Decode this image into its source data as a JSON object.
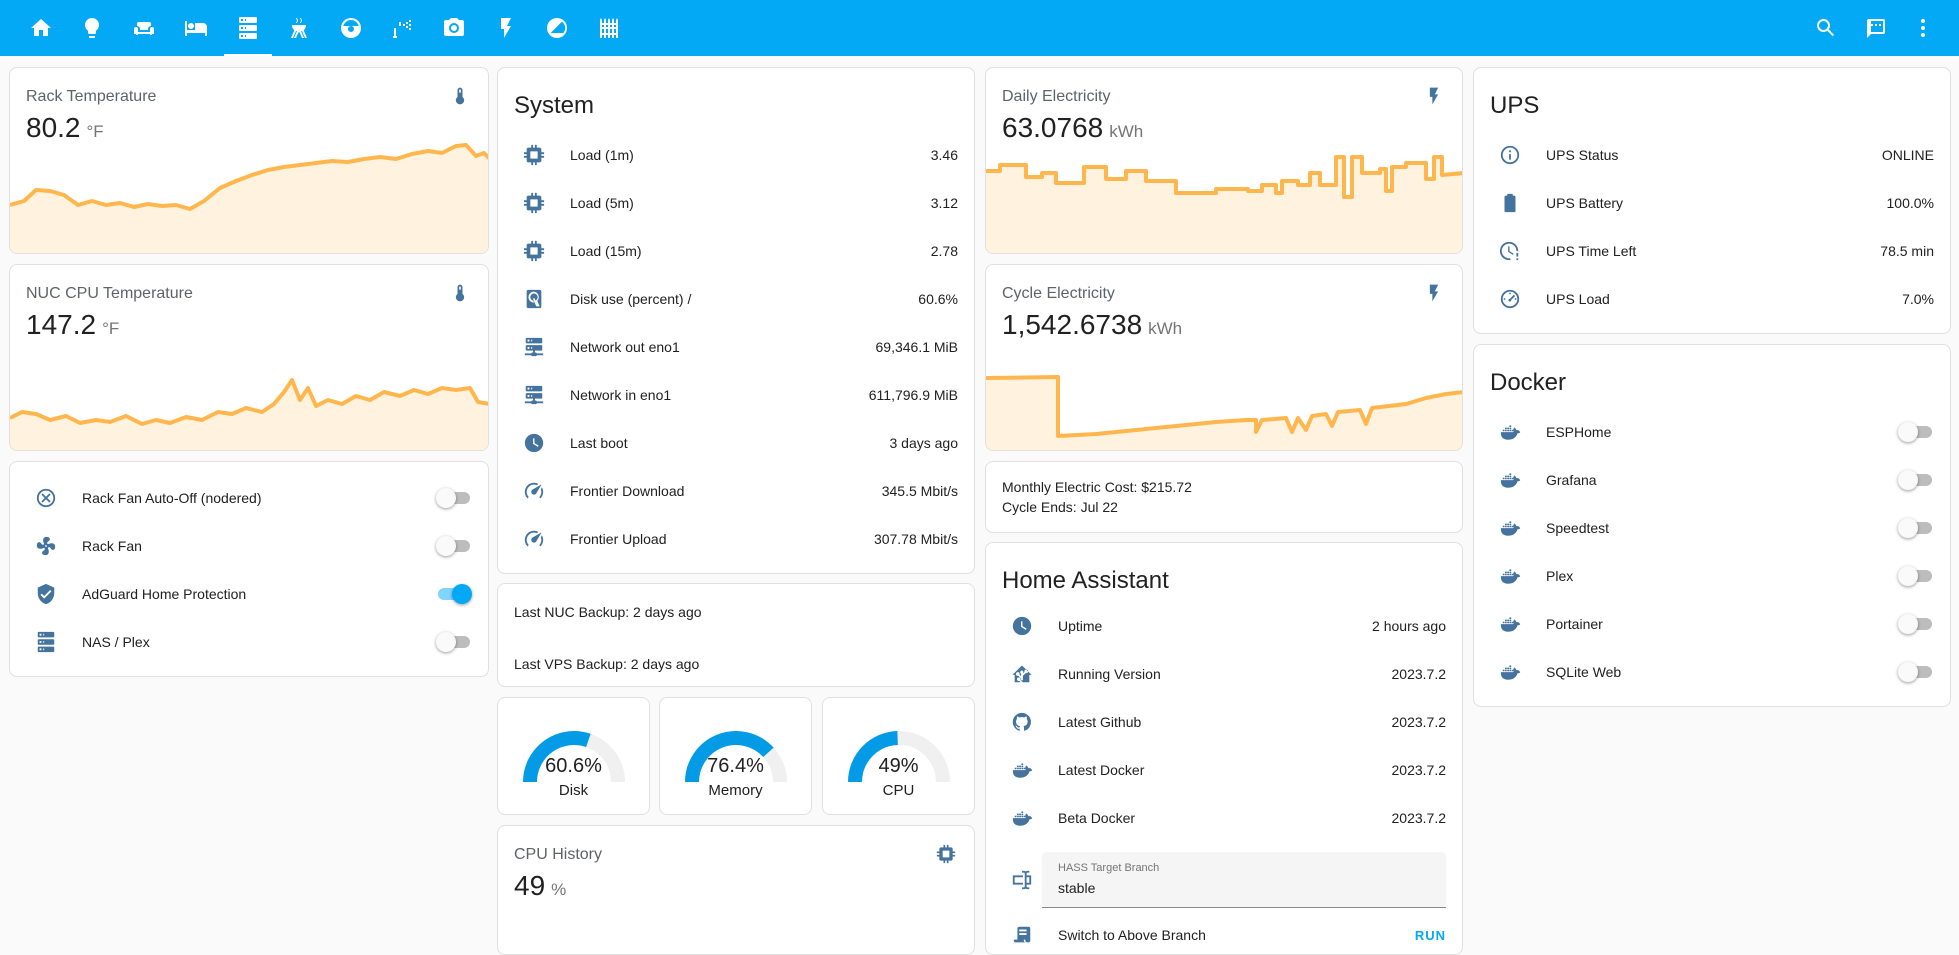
{
  "colors": {
    "accent": "#03a9f4",
    "icon": "#44739e",
    "graph": "#ffb74d"
  },
  "topbar": {
    "tabs": [
      {
        "icon": "home-icon",
        "active": false
      },
      {
        "icon": "brain-icon",
        "active": false
      },
      {
        "icon": "sofa-icon",
        "active": false
      },
      {
        "icon": "bed-icon",
        "active": false
      },
      {
        "icon": "server-icon",
        "active": true
      },
      {
        "icon": "grill-icon",
        "active": false
      },
      {
        "icon": "robot-vacuum-icon",
        "active": false
      },
      {
        "icon": "sprinkler-icon",
        "active": false
      },
      {
        "icon": "camera-icon",
        "active": false
      },
      {
        "icon": "flash-icon",
        "active": false
      },
      {
        "icon": "weather-icon",
        "active": false
      },
      {
        "icon": "fence-icon",
        "active": false
      }
    ],
    "actions": [
      "search-icon",
      "assist-icon",
      "menu-icon"
    ]
  },
  "rack_temp": {
    "name": "Rack Temperature",
    "value": "80.2",
    "unit": "°F",
    "icon": "thermometer-icon"
  },
  "nuc_temp": {
    "name": "NUC CPU Temperature",
    "value": "147.2",
    "unit": "°F",
    "icon": "thermometer-icon"
  },
  "switches": [
    {
      "label": "Rack Fan Auto-Off (nodered)",
      "icon": "close-circle-icon",
      "on": false
    },
    {
      "label": "Rack Fan",
      "icon": "fan-icon",
      "on": false
    },
    {
      "label": "AdGuard Home Protection",
      "icon": "shield-check-icon",
      "on": true
    },
    {
      "label": "NAS / Plex",
      "icon": "server-icon",
      "on": false
    }
  ],
  "system": {
    "title": "System",
    "rows": [
      {
        "label": "Load (1m)",
        "value": "3.46",
        "icon": "cpu-icon"
      },
      {
        "label": "Load (5m)",
        "value": "3.12",
        "icon": "cpu-icon"
      },
      {
        "label": "Load (15m)",
        "value": "2.78",
        "icon": "cpu-icon"
      },
      {
        "label": "Disk use (percent) /",
        "value": "60.6%",
        "icon": "harddisk-icon"
      },
      {
        "label": "Network out eno1",
        "value": "69,346.1 MiB",
        "icon": "server-network-icon"
      },
      {
        "label": "Network in eno1",
        "value": "611,796.9 MiB",
        "icon": "server-network-icon"
      },
      {
        "label": "Last boot",
        "value": "3 days ago",
        "icon": "clock-icon"
      },
      {
        "label": "Frontier Download",
        "value": "345.5 Mbit/s",
        "icon": "speedometer-icon"
      },
      {
        "label": "Frontier Upload",
        "value": "307.78 Mbit/s",
        "icon": "speedometer-icon"
      }
    ]
  },
  "backups": {
    "nuc": "Last NUC Backup: 2 days ago",
    "vps": "Last VPS Backup: 2 days ago"
  },
  "gauges": [
    {
      "value": "60.6%",
      "label": "Disk",
      "fraction": 0.606
    },
    {
      "value": "76.4%",
      "label": "Memory",
      "fraction": 0.764
    },
    {
      "value": "49%",
      "label": "CPU",
      "fraction": 0.49
    }
  ],
  "cpu_history": {
    "name": "CPU History",
    "value": "49",
    "unit": "%",
    "icon": "cpu-icon"
  },
  "daily_elec": {
    "name": "Daily Electricity",
    "value": "63.0768",
    "unit": "kWh",
    "icon": "flash-icon"
  },
  "cycle_elec": {
    "name": "Cycle Electricity",
    "value": "1,542.6738",
    "unit": "kWh",
    "icon": "flash-icon"
  },
  "electric_info": {
    "cost": "Monthly Electric Cost: $215.72",
    "cycle": "Cycle Ends: Jul 22"
  },
  "ha": {
    "title": "Home Assistant",
    "rows": [
      {
        "label": "Uptime",
        "value": "2 hours ago",
        "icon": "clock-icon"
      },
      {
        "label": "Running Version",
        "value": "2023.7.2",
        "icon": "home-assistant-icon"
      },
      {
        "label": "Latest Github",
        "value": "2023.7.2",
        "icon": "github-icon"
      },
      {
        "label": "Latest Docker",
        "value": "2023.7.2",
        "icon": "docker-icon"
      },
      {
        "label": "Beta Docker",
        "value": "2023.7.2",
        "icon": "docker-icon"
      }
    ],
    "branch_label": "HASS Target Branch",
    "branch_value": "stable",
    "switch_label": "Switch to Above Branch",
    "run_label": "RUN"
  },
  "ups": {
    "title": "UPS",
    "rows": [
      {
        "label": "UPS Status",
        "value": "ONLINE",
        "icon": "information-icon"
      },
      {
        "label": "UPS Battery",
        "value": "100.0%",
        "icon": "battery-icon"
      },
      {
        "label": "UPS Time Left",
        "value": "78.5 min",
        "icon": "clock-alert-icon"
      },
      {
        "label": "UPS Load",
        "value": "7.0%",
        "icon": "gauge-icon"
      }
    ]
  },
  "docker": {
    "title": "Docker",
    "items": [
      {
        "label": "ESPHome",
        "on": false
      },
      {
        "label": "Grafana",
        "on": false
      },
      {
        "label": "Speedtest",
        "on": false
      },
      {
        "label": "Plex",
        "on": false
      },
      {
        "label": "Portainer",
        "on": false
      },
      {
        "label": "SQLite Web",
        "on": false
      }
    ]
  }
}
